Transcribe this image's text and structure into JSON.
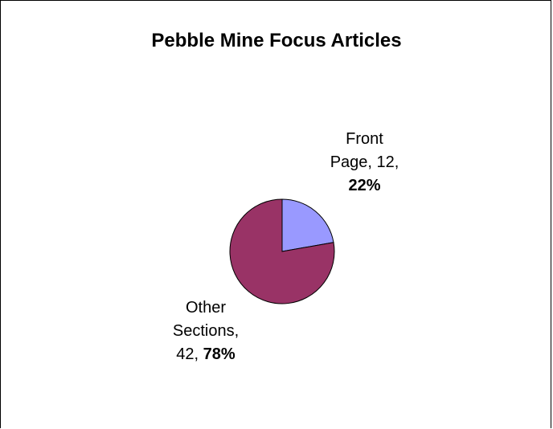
{
  "chart_data": {
    "type": "pie",
    "title": "Pebble Mine Focus Articles",
    "slices": [
      {
        "label": "Front Page",
        "label_lines": [
          "Front",
          "Page, 12,"
        ],
        "value": 12,
        "percent_label": "22%",
        "color": "#9999ff"
      },
      {
        "label": "Other Sections",
        "label_lines": [
          "Other",
          "Sections,",
          "42,"
        ],
        "value": 42,
        "percent_label": "78%",
        "color": "#993366"
      }
    ],
    "legend": "none"
  }
}
